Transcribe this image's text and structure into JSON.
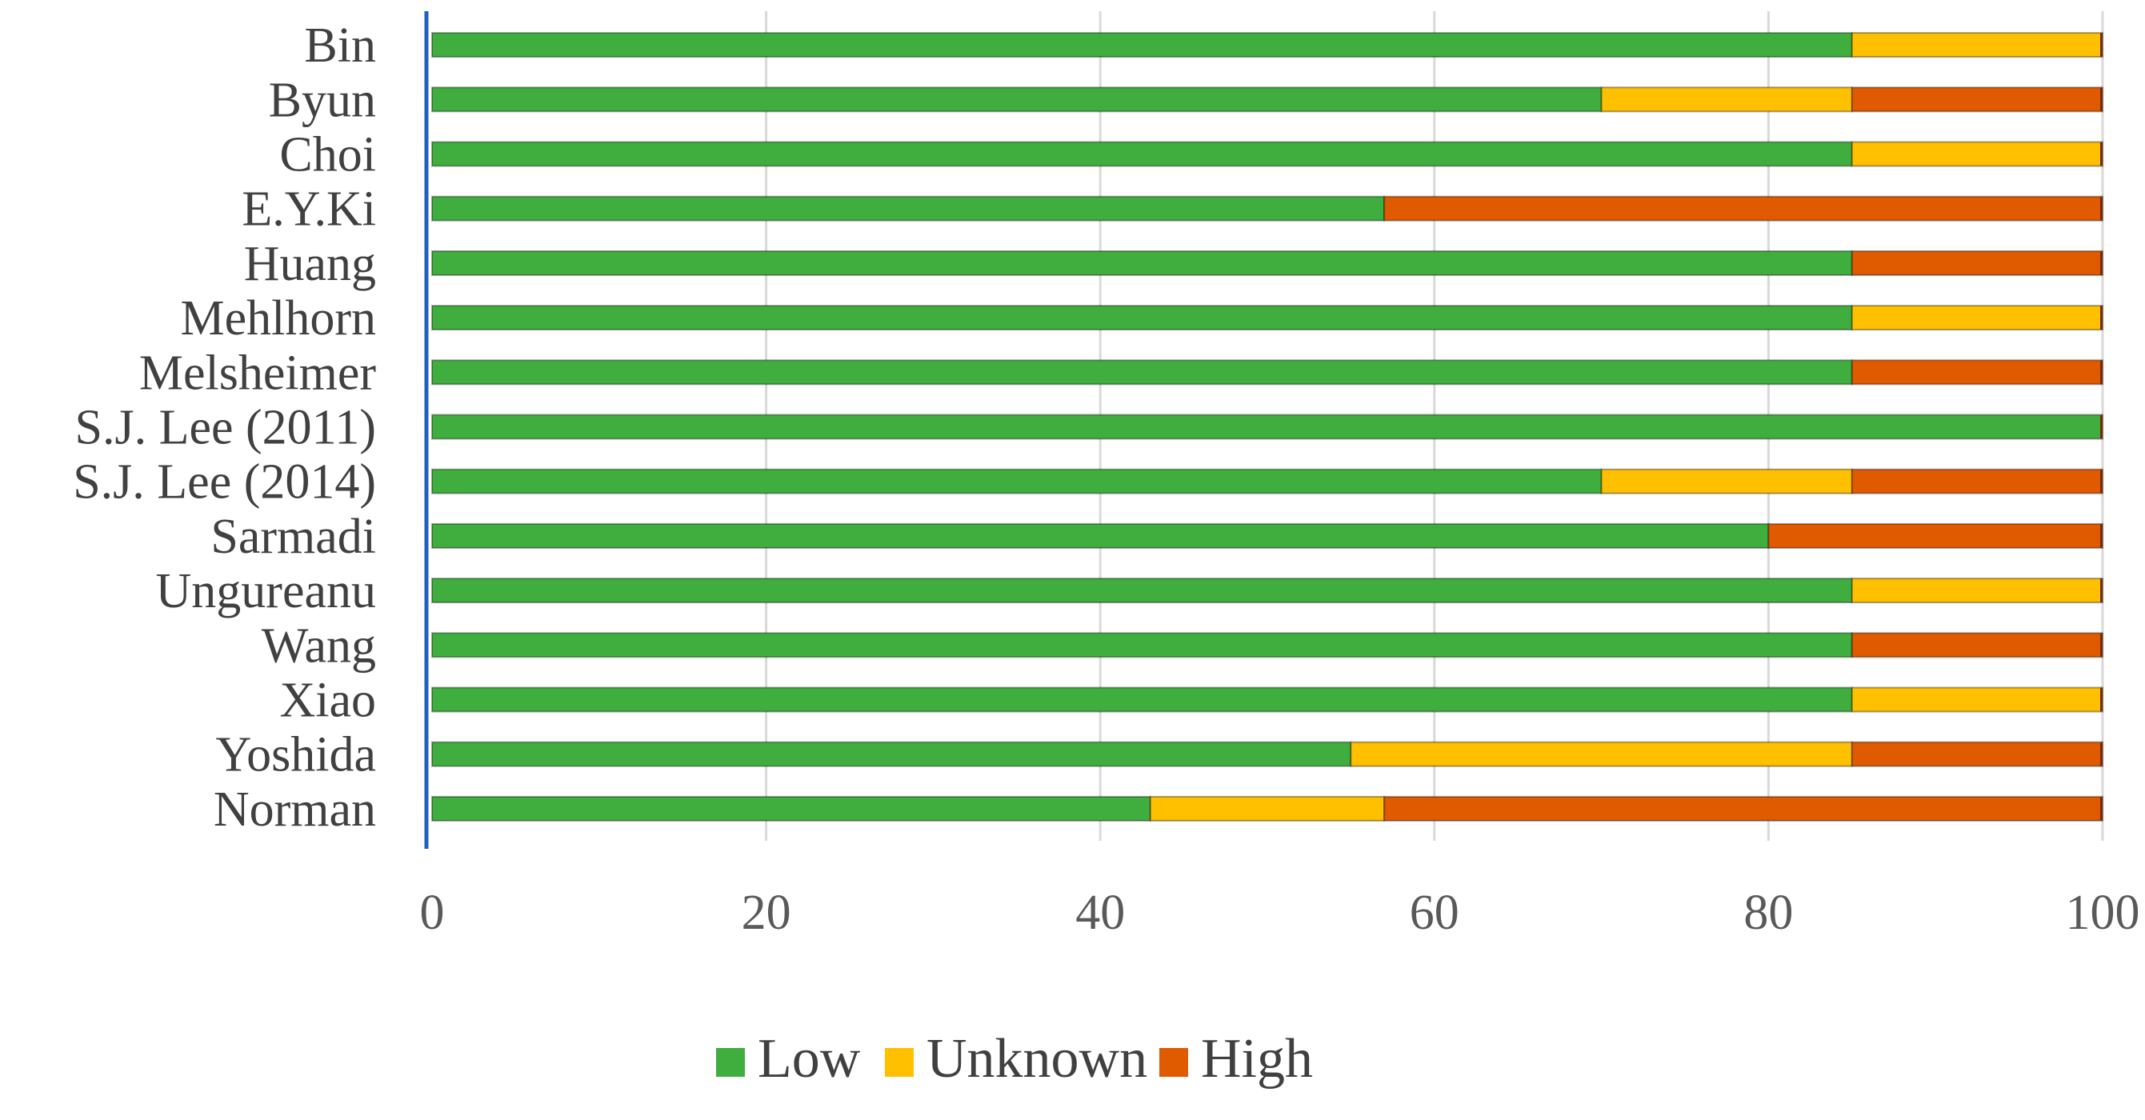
{
  "chart_data": {
    "type": "bar",
    "orientation": "horizontal",
    "stacked": true,
    "title": "",
    "xlabel": "",
    "ylabel": "",
    "xlim": [
      0,
      100
    ],
    "x_ticks": [
      0,
      20,
      40,
      60,
      80,
      100
    ],
    "x_tick_labels": [
      "0",
      "20",
      "40",
      "60",
      "80",
      "100"
    ],
    "grid": "vertical",
    "legend_position": "bottom",
    "categories": [
      "Bin",
      "Byun",
      "Choi",
      "E.Y.Ki",
      "Huang",
      "Mehlhorn",
      "Melsheimer",
      "S.J. Lee (2011)",
      "S.J. Lee (2014)",
      "Sarmadi",
      "Ungureanu",
      "Wang",
      "Xiao",
      "Yoshida",
      "Norman"
    ],
    "series": [
      {
        "name": "Low",
        "color": "#3fae3f",
        "values": [
          85,
          70,
          85,
          57,
          85,
          85,
          85,
          100,
          70,
          80,
          85,
          85,
          85,
          55,
          43
        ]
      },
      {
        "name": "Unknown",
        "color": "#ffc000",
        "values": [
          15,
          15,
          15,
          0,
          0,
          15,
          0,
          0,
          15,
          0,
          15,
          0,
          15,
          30,
          14
        ]
      },
      {
        "name": "High",
        "color": "#e05a00",
        "values": [
          0,
          15,
          0,
          43,
          15,
          0,
          15,
          0,
          15,
          20,
          0,
          15,
          0,
          15,
          43
        ]
      }
    ]
  }
}
